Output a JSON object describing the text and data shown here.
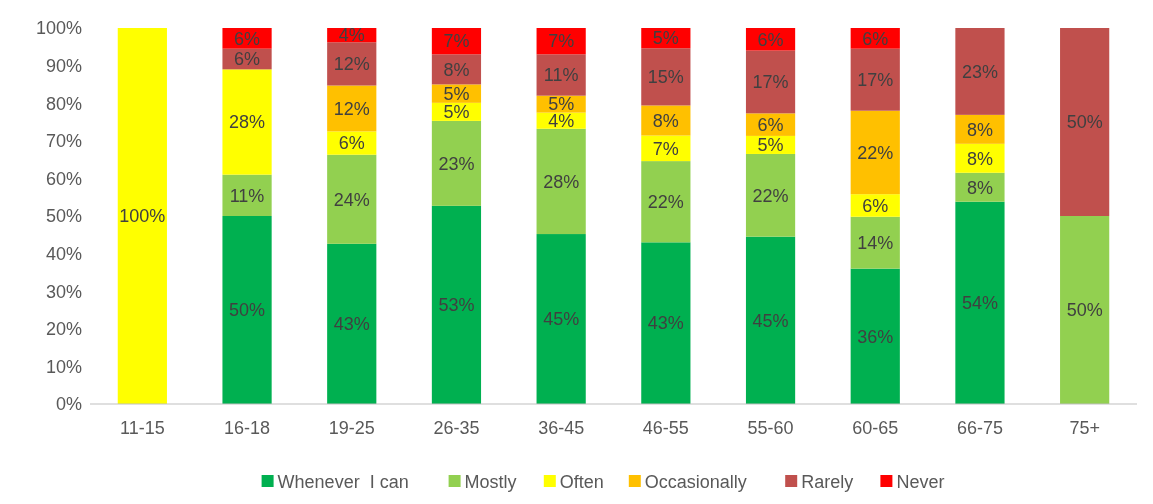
{
  "chart_data": {
    "type": "bar",
    "stacked": true,
    "categories": [
      "11-15",
      "16-18",
      "19-25",
      "26-35",
      "36-45",
      "46-55",
      "55-60",
      "60-65",
      "66-75",
      "75+"
    ],
    "ylim": [
      0,
      100
    ],
    "yticks": [
      {
        "value": 0,
        "label": "0%"
      },
      {
        "value": 10,
        "label": "10%"
      },
      {
        "value": 20,
        "label": "20%"
      },
      {
        "value": 30,
        "label": "30%"
      },
      {
        "value": 40,
        "label": "40%"
      },
      {
        "value": 50,
        "label": "50%"
      },
      {
        "value": 60,
        "label": "60%"
      },
      {
        "value": 70,
        "label": "70%"
      },
      {
        "value": 80,
        "label": "80%"
      },
      {
        "value": 90,
        "label": "90%"
      },
      {
        "value": 100,
        "label": "100%"
      }
    ],
    "grid": false,
    "legend": "bottom",
    "series": [
      {
        "name": "Whenever  I can",
        "color": "#00b050",
        "values": [
          0,
          50,
          42.6,
          52.7,
          45.2,
          43,
          44.5,
          36,
          53.8,
          0
        ],
        "value_labels": [
          null,
          "50%",
          "43%",
          "53%",
          "45%",
          "43%",
          "45%",
          "36%",
          "54%",
          null
        ]
      },
      {
        "name": "Mostly",
        "color": "#92d050",
        "values": [
          0,
          11,
          23.7,
          22.6,
          28,
          21.6,
          22,
          13.8,
          7.7,
          50
        ],
        "value_labels": [
          null,
          "11%",
          "24%",
          "23%",
          "28%",
          "22%",
          "22%",
          "14%",
          "8%",
          "50%"
        ]
      },
      {
        "name": "Often",
        "color": "#ffff00",
        "values": [
          100,
          28,
          6.2,
          4.8,
          4.3,
          6.8,
          4.8,
          6,
          7.7,
          0
        ],
        "value_labels": [
          "100%",
          "28%",
          "6%",
          "5%",
          "4%",
          "7%",
          "5%",
          "6%",
          "8%",
          null
        ]
      },
      {
        "name": "Occasionally",
        "color": "#ffc000",
        "values": [
          0,
          0,
          12.2,
          4.9,
          4.5,
          8,
          6,
          22.2,
          7.7,
          0
        ],
        "value_labels": [
          null,
          null,
          "12%",
          "5%",
          "5%",
          "8%",
          "6%",
          "22%",
          "8%",
          null
        ]
      },
      {
        "name": "Rarely",
        "color": "#c0504d",
        "values": [
          0,
          5.5,
          11.5,
          8,
          11,
          15.2,
          16.7,
          16.5,
          23.1,
          50
        ],
        "value_labels": [
          null,
          "6%",
          "12%",
          "8%",
          "11%",
          "15%",
          "17%",
          "17%",
          "23%",
          "50%"
        ]
      },
      {
        "name": "Never",
        "color": "#ff0000",
        "values": [
          0,
          5.5,
          3.8,
          7,
          7,
          5.4,
          6,
          5.5,
          0,
          0
        ],
        "value_labels": [
          null,
          "6%",
          "4%",
          "7%",
          "7%",
          "5%",
          "6%",
          "6%",
          null,
          null
        ]
      }
    ]
  }
}
